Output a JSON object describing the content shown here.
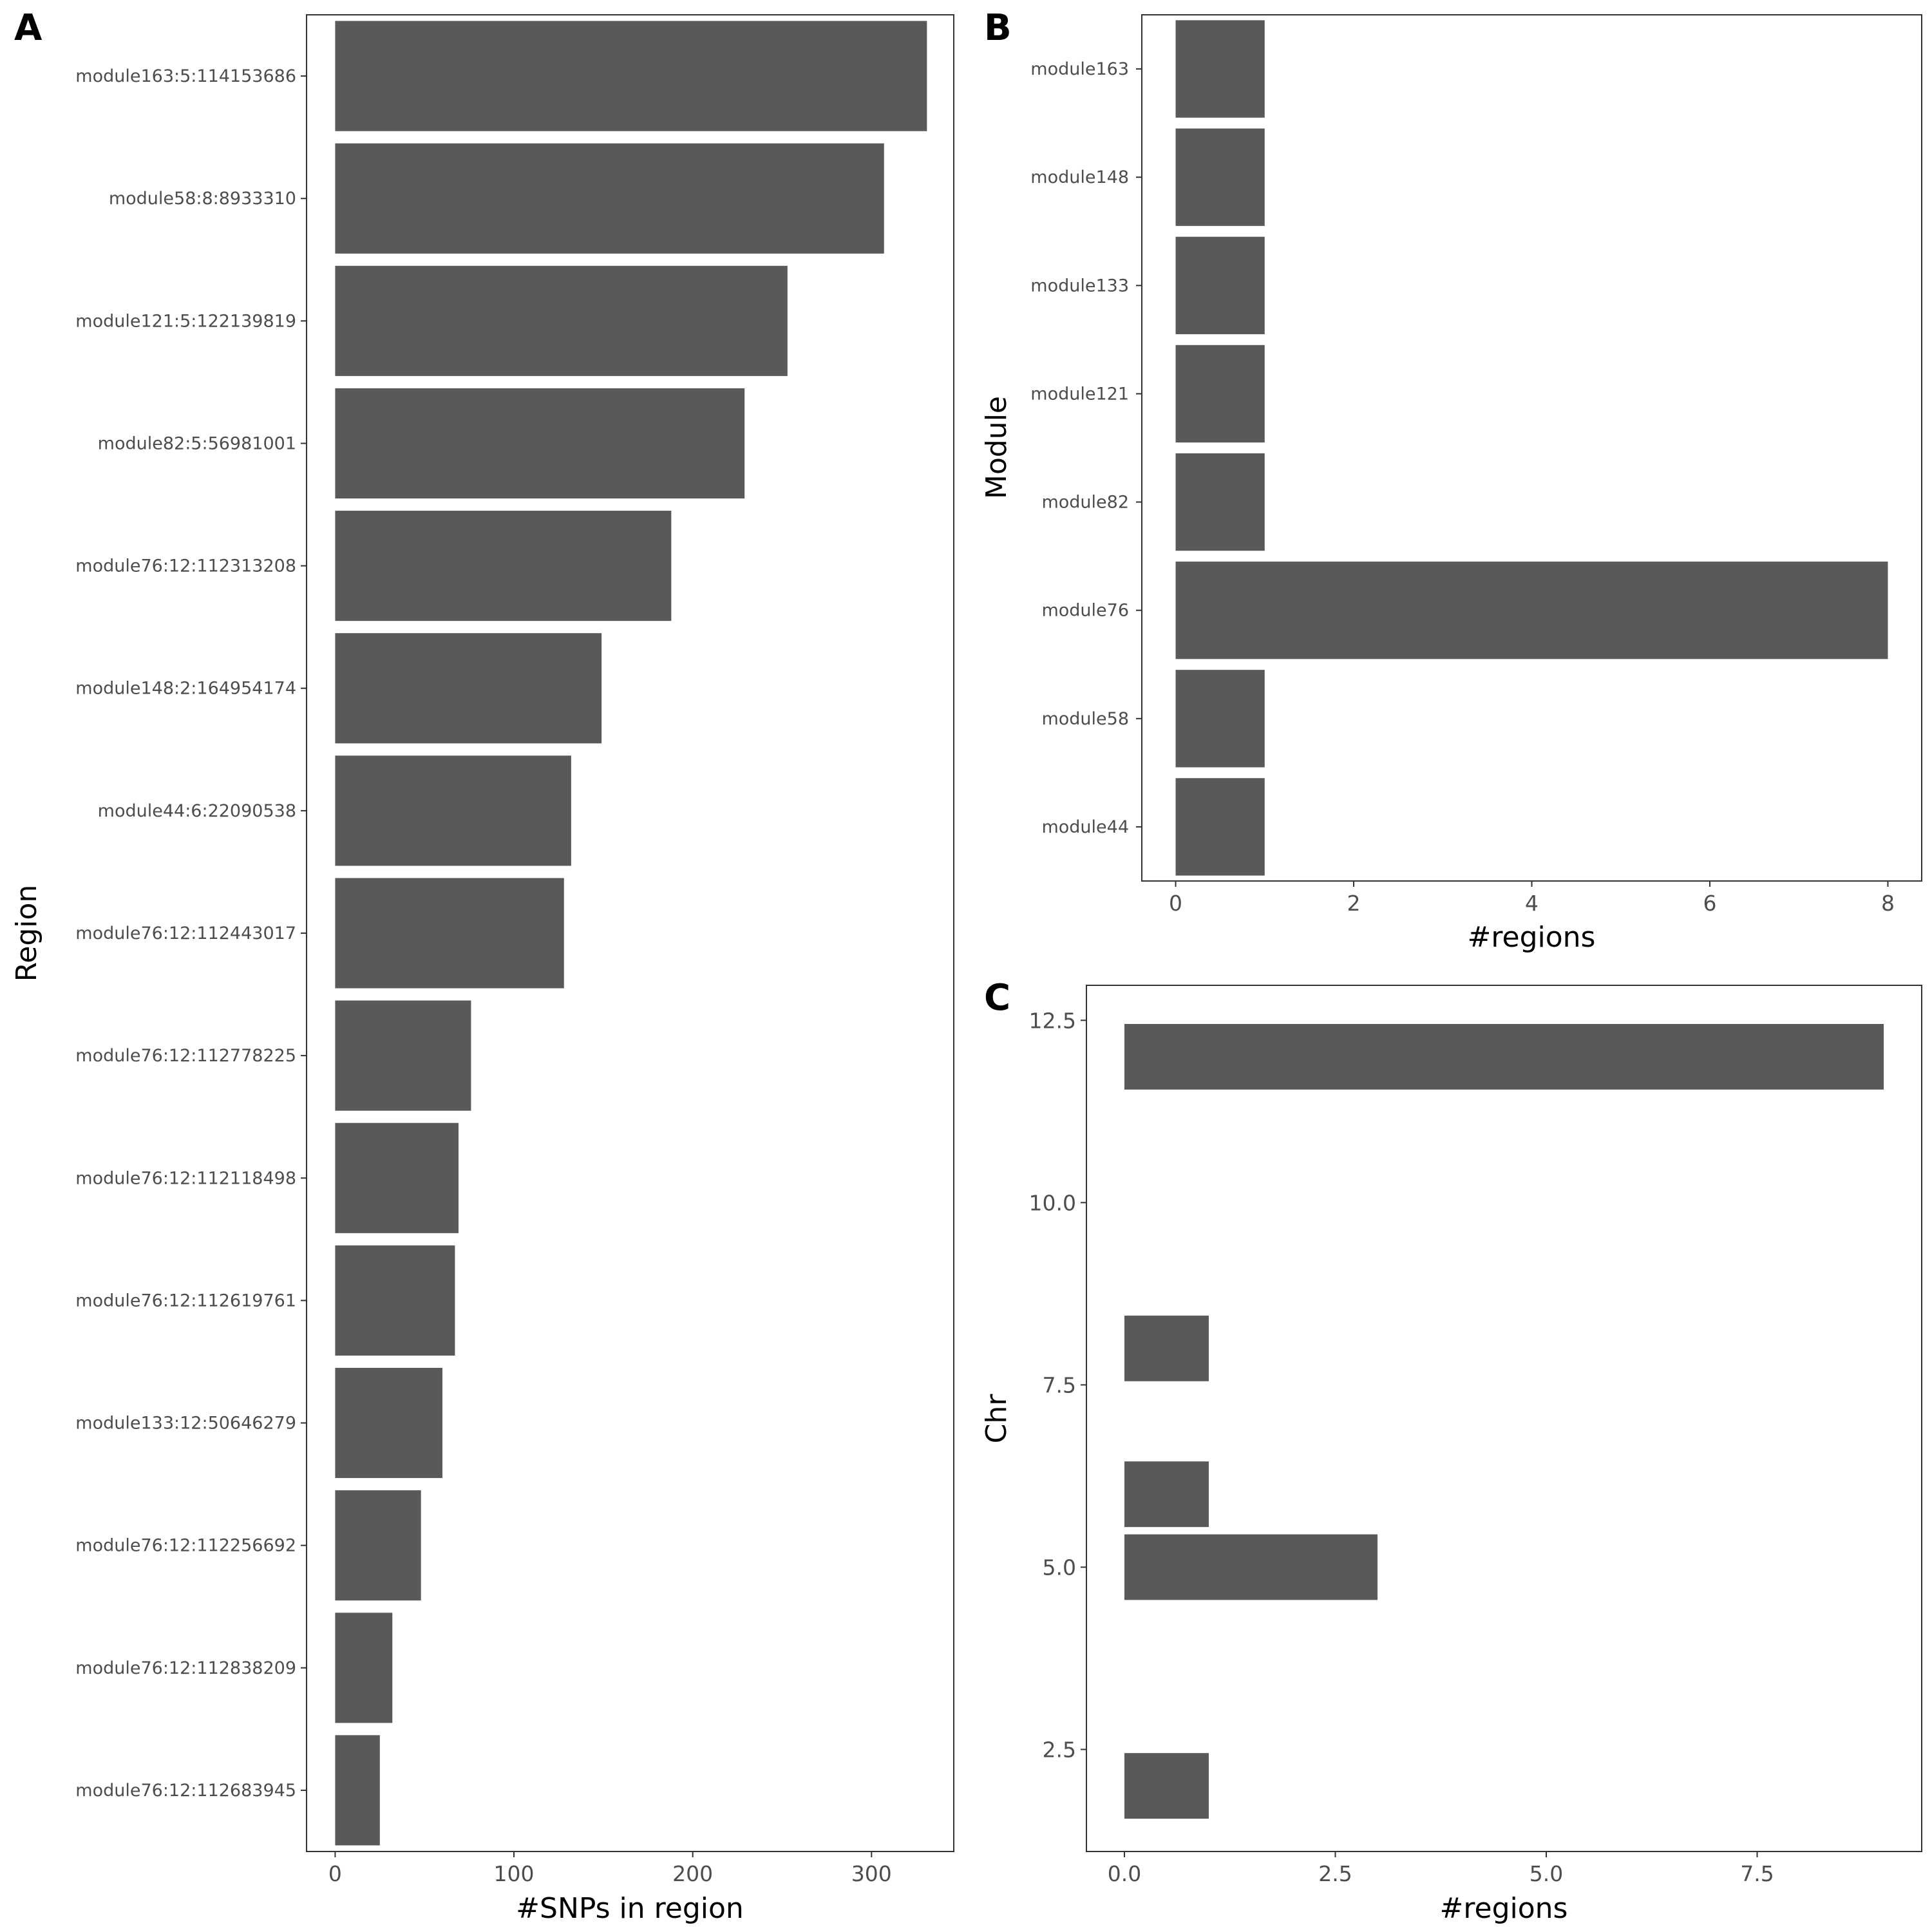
{
  "panels": {
    "A": "A",
    "B": "B",
    "C": "C"
  },
  "colors": {
    "bar": "#595959",
    "frame": "#333333",
    "tick_text": "#4d4d4d",
    "axis_title": "#000000",
    "background": "#ffffff"
  },
  "chart_data": [
    {
      "panel": "A",
      "type": "bar",
      "orientation": "horizontal",
      "xlabel": "#SNPs in region",
      "ylabel": "Region",
      "xlim": [
        -16,
        346
      ],
      "xticks": [
        0,
        100,
        200,
        300
      ],
      "grid": false,
      "categories": [
        "module163:5:114153686",
        "module58:8:8933310",
        "module121:5:122139819",
        "module82:5:56981001",
        "module76:12:112313208",
        "module148:2:164954174",
        "module44:6:22090538",
        "module76:12:112443017",
        "module76:12:112778225",
        "module76:12:112118498",
        "module76:12:112619761",
        "module133:12:50646279",
        "module76:12:112256692",
        "module76:12:112838209",
        "module76:12:112683945"
      ],
      "values": [
        331,
        307,
        253,
        229,
        188,
        149,
        132,
        128,
        76,
        69,
        67,
        60,
        48,
        32,
        25
      ]
    },
    {
      "panel": "B",
      "type": "bar",
      "orientation": "horizontal",
      "xlabel": "#regions",
      "ylabel": "Module",
      "xlim": [
        -0.38,
        8.38
      ],
      "xticks": [
        "0",
        "2",
        "4",
        "6",
        "8"
      ],
      "grid": false,
      "categories": [
        "module163",
        "module148",
        "module133",
        "module121",
        "module82",
        "module76",
        "module58",
        "module44"
      ],
      "values": [
        1,
        1,
        1,
        1,
        1,
        8,
        1,
        1
      ]
    },
    {
      "panel": "C",
      "type": "bar",
      "orientation": "horizontal",
      "xlabel": "#regions",
      "ylabel": "Chr",
      "xlim": [
        -0.45,
        9.45
      ],
      "ylim": [
        1.1,
        12.98
      ],
      "xticks": [
        "0.0",
        "2.5",
        "5.0",
        "7.5"
      ],
      "yticks": [
        "2.5",
        "5.0",
        "7.5",
        "10.0",
        "12.5"
      ],
      "grid": false,
      "bars": [
        {
          "chr": 2,
          "value": 1
        },
        {
          "chr": 5,
          "value": 3
        },
        {
          "chr": 6,
          "value": 1
        },
        {
          "chr": 8,
          "value": 1
        },
        {
          "chr": 12,
          "value": 9
        }
      ]
    }
  ]
}
